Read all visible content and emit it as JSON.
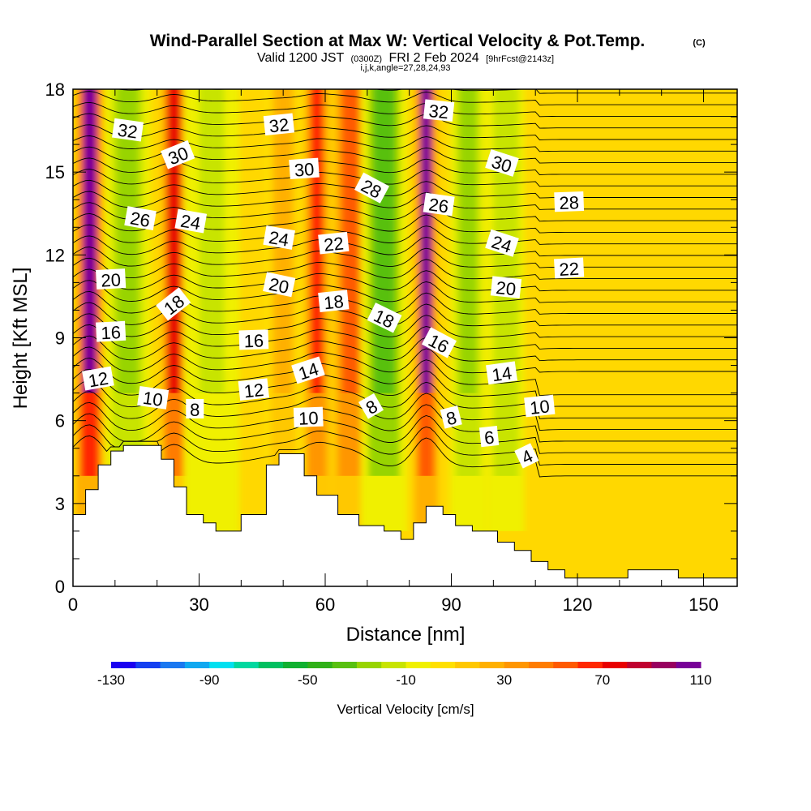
{
  "title": {
    "main": "Wind-Parallel Section at Max W: Vertical Velocity & Pot.Temp.",
    "copyright": "(C)",
    "valid_a": "Valid 1200 JST",
    "valid_utc": "(0300Z)",
    "valid_b": "FRI 2 Feb 2024",
    "fcst": "[9hrFcst@2143z]",
    "ijk": "i,j,k,angle=27,28,24,93"
  },
  "chart_data": {
    "type": "heatmap",
    "xlabel": "Distance [nm]",
    "ylabel": "Height [Kft MSL]",
    "xlim": [
      0,
      158
    ],
    "ylim": [
      0,
      18
    ],
    "x_ticks": [
      0,
      30,
      60,
      90,
      120,
      150
    ],
    "y_ticks": [
      0,
      3,
      6,
      9,
      12,
      15,
      18
    ],
    "colorbar": {
      "label": "Vertical Velocity [cm/s]",
      "tick_labels": [
        "-130",
        "-90",
        "-50",
        "-10",
        "30",
        "70",
        "110"
      ],
      "min": -130,
      "max": 110,
      "step": 10,
      "colors": [
        "#1a00f0",
        "#1440f0",
        "#1a78f0",
        "#10a8f0",
        "#00e0f0",
        "#00d8a0",
        "#00c060",
        "#10b030",
        "#30b018",
        "#58c010",
        "#98d400",
        "#c8e400",
        "#f0f000",
        "#ffe000",
        "#ffc800",
        "#ffb000",
        "#ff9600",
        "#ff7c00",
        "#ff5a00",
        "#ff2800",
        "#e80000",
        "#c00030",
        "#980060",
        "#780098"
      ]
    },
    "vertical_velocity_columns": [
      {
        "x": 4,
        "w": 112,
        "width": 3
      },
      {
        "x": 13,
        "w": -30,
        "width": 5
      },
      {
        "x": 24,
        "w": 78,
        "width": 3
      },
      {
        "x": 33,
        "w": -18,
        "width": 6
      },
      {
        "x": 50,
        "w": 20,
        "width": 4
      },
      {
        "x": 58,
        "w": 60,
        "width": 3
      },
      {
        "x": 66,
        "w": 55,
        "width": 4
      },
      {
        "x": 74,
        "w": -38,
        "width": 5
      },
      {
        "x": 84,
        "w": 105,
        "width": 2.5
      },
      {
        "x": 94,
        "w": -30,
        "width": 4
      },
      {
        "x": 103,
        "w": -20,
        "width": 4
      }
    ],
    "terrain": [
      [
        0,
        0
      ],
      [
        0,
        2.6
      ],
      [
        3,
        2.6
      ],
      [
        3,
        3.5
      ],
      [
        6,
        3.5
      ],
      [
        6,
        4.4
      ],
      [
        9,
        4.4
      ],
      [
        9,
        4.9
      ],
      [
        12,
        4.9
      ],
      [
        12,
        5.1
      ],
      [
        21,
        5.1
      ],
      [
        21,
        4.6
      ],
      [
        24,
        4.6
      ],
      [
        24,
        3.6
      ],
      [
        27,
        3.6
      ],
      [
        27,
        2.6
      ],
      [
        31,
        2.6
      ],
      [
        31,
        2.3
      ],
      [
        34,
        2.3
      ],
      [
        34,
        2.0
      ],
      [
        40,
        2.0
      ],
      [
        40,
        2.6
      ],
      [
        46,
        2.6
      ],
      [
        46,
        4.4
      ],
      [
        49,
        4.4
      ],
      [
        49,
        4.8
      ],
      [
        55,
        4.8
      ],
      [
        55,
        4.0
      ],
      [
        58,
        4.0
      ],
      [
        58,
        3.3
      ],
      [
        63,
        3.3
      ],
      [
        63,
        2.6
      ],
      [
        68,
        2.6
      ],
      [
        68,
        2.2
      ],
      [
        74,
        2.2
      ],
      [
        74,
        2.0
      ],
      [
        78,
        2.0
      ],
      [
        78,
        1.7
      ],
      [
        81,
        1.7
      ],
      [
        81,
        2.3
      ],
      [
        84,
        2.3
      ],
      [
        84,
        2.9
      ],
      [
        88,
        2.9
      ],
      [
        88,
        2.6
      ],
      [
        91,
        2.6
      ],
      [
        91,
        2.2
      ],
      [
        95,
        2.2
      ],
      [
        95,
        2.0
      ],
      [
        101,
        2.0
      ],
      [
        101,
        1.6
      ],
      [
        105,
        1.6
      ],
      [
        105,
        1.3
      ],
      [
        109,
        1.3
      ],
      [
        109,
        0.9
      ],
      [
        113,
        0.9
      ],
      [
        113,
        0.6
      ],
      [
        117,
        0.6
      ],
      [
        117,
        0.3
      ],
      [
        126,
        0.3
      ],
      [
        126,
        0.3
      ],
      [
        129,
        0.3
      ],
      [
        129,
        0.3
      ],
      [
        132,
        0.3
      ],
      [
        132,
        0.6
      ],
      [
        144,
        0.6
      ],
      [
        144,
        0.3
      ],
      [
        158,
        0.3
      ],
      [
        158,
        0
      ]
    ],
    "theta_contour_labels": [
      {
        "x": 13,
        "y": 16.5,
        "text": "32",
        "angle": 8
      },
      {
        "x": 49,
        "y": 16.7,
        "text": "32",
        "angle": -6
      },
      {
        "x": 87,
        "y": 17.2,
        "text": "32",
        "angle": 6
      },
      {
        "x": 25,
        "y": 15.6,
        "text": "30",
        "angle": -22
      },
      {
        "x": 55,
        "y": 15.1,
        "text": "30",
        "angle": -4
      },
      {
        "x": 102,
        "y": 15.3,
        "text": "30",
        "angle": 18
      },
      {
        "x": 71,
        "y": 14.4,
        "text": "28",
        "angle": 28
      },
      {
        "x": 118,
        "y": 13.9,
        "text": "28",
        "angle": -2
      },
      {
        "x": 87,
        "y": 13.8,
        "text": "26",
        "angle": 8
      },
      {
        "x": 16,
        "y": 13.3,
        "text": "26",
        "angle": 10
      },
      {
        "x": 28,
        "y": 13.2,
        "text": "24",
        "angle": 10
      },
      {
        "x": 49,
        "y": 12.6,
        "text": "24",
        "angle": 10
      },
      {
        "x": 102,
        "y": 12.4,
        "text": "24",
        "angle": 18
      },
      {
        "x": 62,
        "y": 12.4,
        "text": "22",
        "angle": -6
      },
      {
        "x": 118,
        "y": 11.5,
        "text": "22",
        "angle": -3
      },
      {
        "x": 9,
        "y": 11.1,
        "text": "20",
        "angle": -3
      },
      {
        "x": 49,
        "y": 10.9,
        "text": "20",
        "angle": 12
      },
      {
        "x": 103,
        "y": 10.8,
        "text": "20",
        "angle": 6
      },
      {
        "x": 24,
        "y": 10.2,
        "text": "18",
        "angle": -38
      },
      {
        "x": 62,
        "y": 10.3,
        "text": "18",
        "angle": -6
      },
      {
        "x": 74,
        "y": 9.7,
        "text": "18",
        "angle": 26
      },
      {
        "x": 9,
        "y": 9.2,
        "text": "16",
        "angle": -3
      },
      {
        "x": 43,
        "y": 8.9,
        "text": "16",
        "angle": -2
      },
      {
        "x": 87,
        "y": 8.8,
        "text": "16",
        "angle": 28
      },
      {
        "x": 56,
        "y": 7.8,
        "text": "14",
        "angle": -18
      },
      {
        "x": 102,
        "y": 7.7,
        "text": "14",
        "angle": -8
      },
      {
        "x": 6,
        "y": 7.5,
        "text": "12",
        "angle": -10
      },
      {
        "x": 43,
        "y": 7.1,
        "text": "12",
        "angle": -6
      },
      {
        "x": 19,
        "y": 6.8,
        "text": "10",
        "angle": 8
      },
      {
        "x": 56,
        "y": 6.1,
        "text": "10",
        "angle": -2
      },
      {
        "x": 111,
        "y": 6.5,
        "text": "10",
        "angle": -6
      },
      {
        "x": 29,
        "y": 6.4,
        "text": "8",
        "angle": 0
      },
      {
        "x": 71,
        "y": 6.5,
        "text": "8",
        "angle": -30
      },
      {
        "x": 90,
        "y": 6.1,
        "text": "8",
        "angle": -14
      },
      {
        "x": 99,
        "y": 5.4,
        "text": "6",
        "angle": -6
      },
      {
        "x": 108,
        "y": 4.7,
        "text": "4",
        "angle": -26
      }
    ],
    "grid": false
  }
}
